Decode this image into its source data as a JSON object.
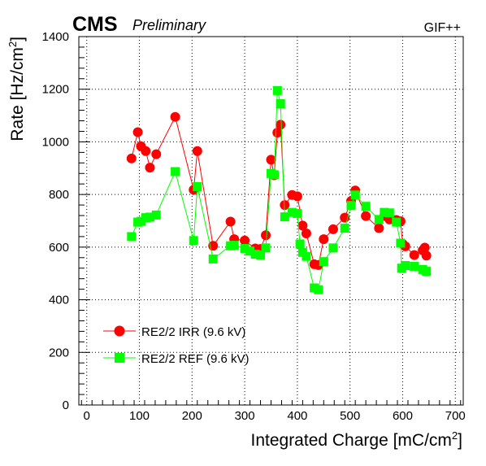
{
  "header": {
    "experiment": "CMS",
    "status": "Preliminary",
    "facility": "GIF++"
  },
  "chart_data": {
    "type": "line",
    "xlabel": "Integrated Charge [mC/cm",
    "xlabel_sup": "2",
    "xlabel_end": "]",
    "ylabel": "Rate [Hz/cm",
    "ylabel_sup": "2",
    "ylabel_end": "]",
    "xlim": [
      -15,
      715
    ],
    "ylim": [
      0,
      1400
    ],
    "xticks": [
      0,
      100,
      200,
      300,
      400,
      500,
      600,
      700
    ],
    "xtick_labels": [
      "0",
      "100",
      "200",
      "300",
      "400",
      "500",
      "600",
      "700"
    ],
    "yticks": [
      0,
      200,
      400,
      600,
      800,
      1000,
      1200,
      1400
    ],
    "ytick_labels": [
      "0",
      "200",
      "400",
      "600",
      "800",
      "1000",
      "1200",
      "1400"
    ],
    "grid": true,
    "legend_position": "bottom-left",
    "series": [
      {
        "name": "RE2/2 IRR (9.6 kV)",
        "color": "#ff0000",
        "marker": "circle",
        "points": [
          [
            85,
            937
          ],
          [
            97,
            1037
          ],
          [
            103,
            983
          ],
          [
            112,
            965
          ],
          [
            120,
            902
          ],
          [
            132,
            953
          ],
          [
            168,
            1095
          ],
          [
            203,
            818
          ],
          [
            210,
            965
          ],
          [
            240,
            605
          ],
          [
            273,
            697
          ],
          [
            280,
            630
          ],
          [
            300,
            625
          ],
          [
            320,
            595
          ],
          [
            330,
            593
          ],
          [
            340,
            645
          ],
          [
            350,
            932
          ],
          [
            356,
            873
          ],
          [
            362,
            1035
          ],
          [
            368,
            1065
          ],
          [
            376,
            760
          ],
          [
            390,
            798
          ],
          [
            400,
            793
          ],
          [
            410,
            682
          ],
          [
            417,
            652
          ],
          [
            432,
            535
          ],
          [
            440,
            532
          ],
          [
            450,
            630
          ],
          [
            468,
            668
          ],
          [
            490,
            712
          ],
          [
            502,
            775
          ],
          [
            510,
            815
          ],
          [
            530,
            718
          ],
          [
            555,
            672
          ],
          [
            565,
            718
          ],
          [
            575,
            705
          ],
          [
            588,
            703
          ],
          [
            596,
            698
          ],
          [
            600,
            612
          ],
          [
            605,
            603
          ],
          [
            622,
            570
          ],
          [
            638,
            588
          ],
          [
            642,
            598
          ],
          [
            645,
            568
          ]
        ]
      },
      {
        "name": "RE2/2 REF (9.6 kV)",
        "color": "#00ff00",
        "marker": "square",
        "points": [
          [
            85,
            640
          ],
          [
            97,
            695
          ],
          [
            103,
            698
          ],
          [
            112,
            712
          ],
          [
            120,
            714
          ],
          [
            132,
            722
          ],
          [
            168,
            887
          ],
          [
            203,
            625
          ],
          [
            210,
            830
          ],
          [
            240,
            555
          ],
          [
            273,
            605
          ],
          [
            280,
            607
          ],
          [
            300,
            595
          ],
          [
            310,
            585
          ],
          [
            320,
            573
          ],
          [
            330,
            570
          ],
          [
            340,
            597
          ],
          [
            350,
            880
          ],
          [
            356,
            875
          ],
          [
            362,
            1195
          ],
          [
            368,
            1145
          ],
          [
            376,
            715
          ],
          [
            390,
            732
          ],
          [
            400,
            728
          ],
          [
            405,
            612
          ],
          [
            410,
            580
          ],
          [
            417,
            565
          ],
          [
            432,
            445
          ],
          [
            440,
            438
          ],
          [
            450,
            545
          ],
          [
            468,
            597
          ],
          [
            490,
            672
          ],
          [
            502,
            758
          ],
          [
            510,
            798
          ],
          [
            530,
            755
          ],
          [
            555,
            705
          ],
          [
            565,
            732
          ],
          [
            575,
            730
          ],
          [
            588,
            695
          ],
          [
            596,
            615
          ],
          [
            598,
            520
          ],
          [
            605,
            530
          ],
          [
            622,
            527
          ],
          [
            638,
            515
          ],
          [
            645,
            508
          ]
        ]
      }
    ]
  }
}
